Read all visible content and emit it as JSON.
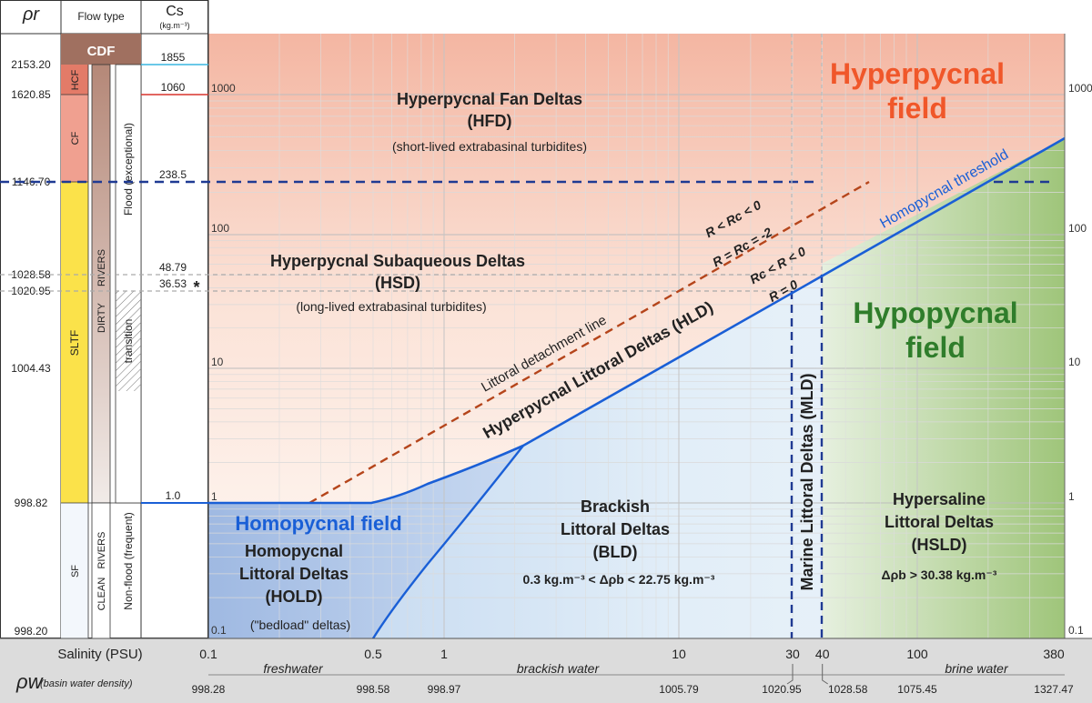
{
  "header": {
    "rho_r": "ρr",
    "flow_type": "Flow type",
    "cs": "Cs",
    "cs_unit": "(kg.m⁻³)"
  },
  "rho_r_values": [
    "2153.20",
    "1620.85",
    "1146.70",
    "1028.58",
    "1020.95",
    "1004.43",
    "998.82",
    "998.20"
  ],
  "flow_type": {
    "cdf": "CDF",
    "hcf": "HCF",
    "cf": "CF",
    "sltf": "SLTF",
    "sf": "SF",
    "dirty_rivers": "DIRTY      RIVERS",
    "clean_rivers": "CLEAN   RIVERS",
    "flood": "Flood (exceptional)",
    "transition": "transition",
    "non_flood": "Non-flood (frequent)"
  },
  "cs_values": [
    "1855",
    "1060",
    "238.5",
    "48.79",
    "36.53",
    "1.0"
  ],
  "asterisk": "*",
  "y_ticks_left": [
    "1000",
    "100",
    "10",
    "1",
    "0.1"
  ],
  "y_ticks_right": [
    "1000",
    "100",
    "10",
    "1",
    "0.1"
  ],
  "fields": {
    "hyperpycnal_1": "Hyperpycnal",
    "hyperpycnal_2": "field",
    "hypopycnal_1": "Hypopycnal",
    "hypopycnal_2": "field",
    "homopycnal": "Homopycnal field"
  },
  "regions": {
    "hfd_1": "Hyperpycnal Fan Deltas",
    "hfd_2": "(HFD)",
    "hfd_3": "(short-lived extrabasinal turbidites)",
    "hsd_1": "Hyperpycnal Subaqueous Deltas",
    "hsd_2": "(HSD)",
    "hsd_3": "(long-lived extrabasinal turbidites)",
    "hld": "Hyperpycnal Littoral Deltas (HLD)",
    "hold_1": "Homopycnal",
    "hold_2": "Littoral Deltas",
    "hold_3": "(HOLD)",
    "hold_4": "(\"bedload\" deltas)",
    "bld_1": "Brackish",
    "bld_2": "Littoral Deltas",
    "bld_3": "(BLD)",
    "bld_4": "0.3 kg.m⁻³ < Δρb < 22.75 kg.m⁻³",
    "mld": "Marine Littoral Deltas (MLD)",
    "hsld_1": "Hypersaline",
    "hsld_2": "Littoral Deltas",
    "hsld_3": "(HSLD)",
    "hsld_4": "Δρb > 30.38 kg.m⁻³"
  },
  "lines": {
    "homopycnal_threshold": "Homopycnal threshold",
    "littoral_detachment": "Littoral detachment line",
    "r_lt_rc_lt_0": "R < Rc < 0",
    "r_eq_rc": "R = Rc = -2",
    "rc_lt_r_lt_0": "Rc < R < 0",
    "r_eq_0": "R = 0"
  },
  "x_axis": {
    "salinity_label": "Salinity (PSU)",
    "salinity_ticks": [
      "0.1",
      "0.5",
      "1",
      "10",
      "30",
      "40",
      "100",
      "380"
    ],
    "density_label": "ρw",
    "density_sub": "(basin water density)",
    "density_ticks": [
      "998.28",
      "998.58",
      "998.97",
      "1005.79",
      "1020.95",
      "1028.58",
      "1075.45",
      "1327.47"
    ],
    "freshwater": "freshwater",
    "brackish": "brackish water",
    "brine": "brine water"
  },
  "colors": {
    "hyperpycnal": "#f0572a",
    "hypopycnal": "#2f7d2b",
    "homopycnal": "#1a5fd6",
    "threshold_line": "#1a5fd6",
    "detachment_line": "#b5451b",
    "dashed_navy": "#1f3a93",
    "cdf": "#a07060",
    "cf": "#f0a090",
    "sltf": "#fbe24a"
  }
}
